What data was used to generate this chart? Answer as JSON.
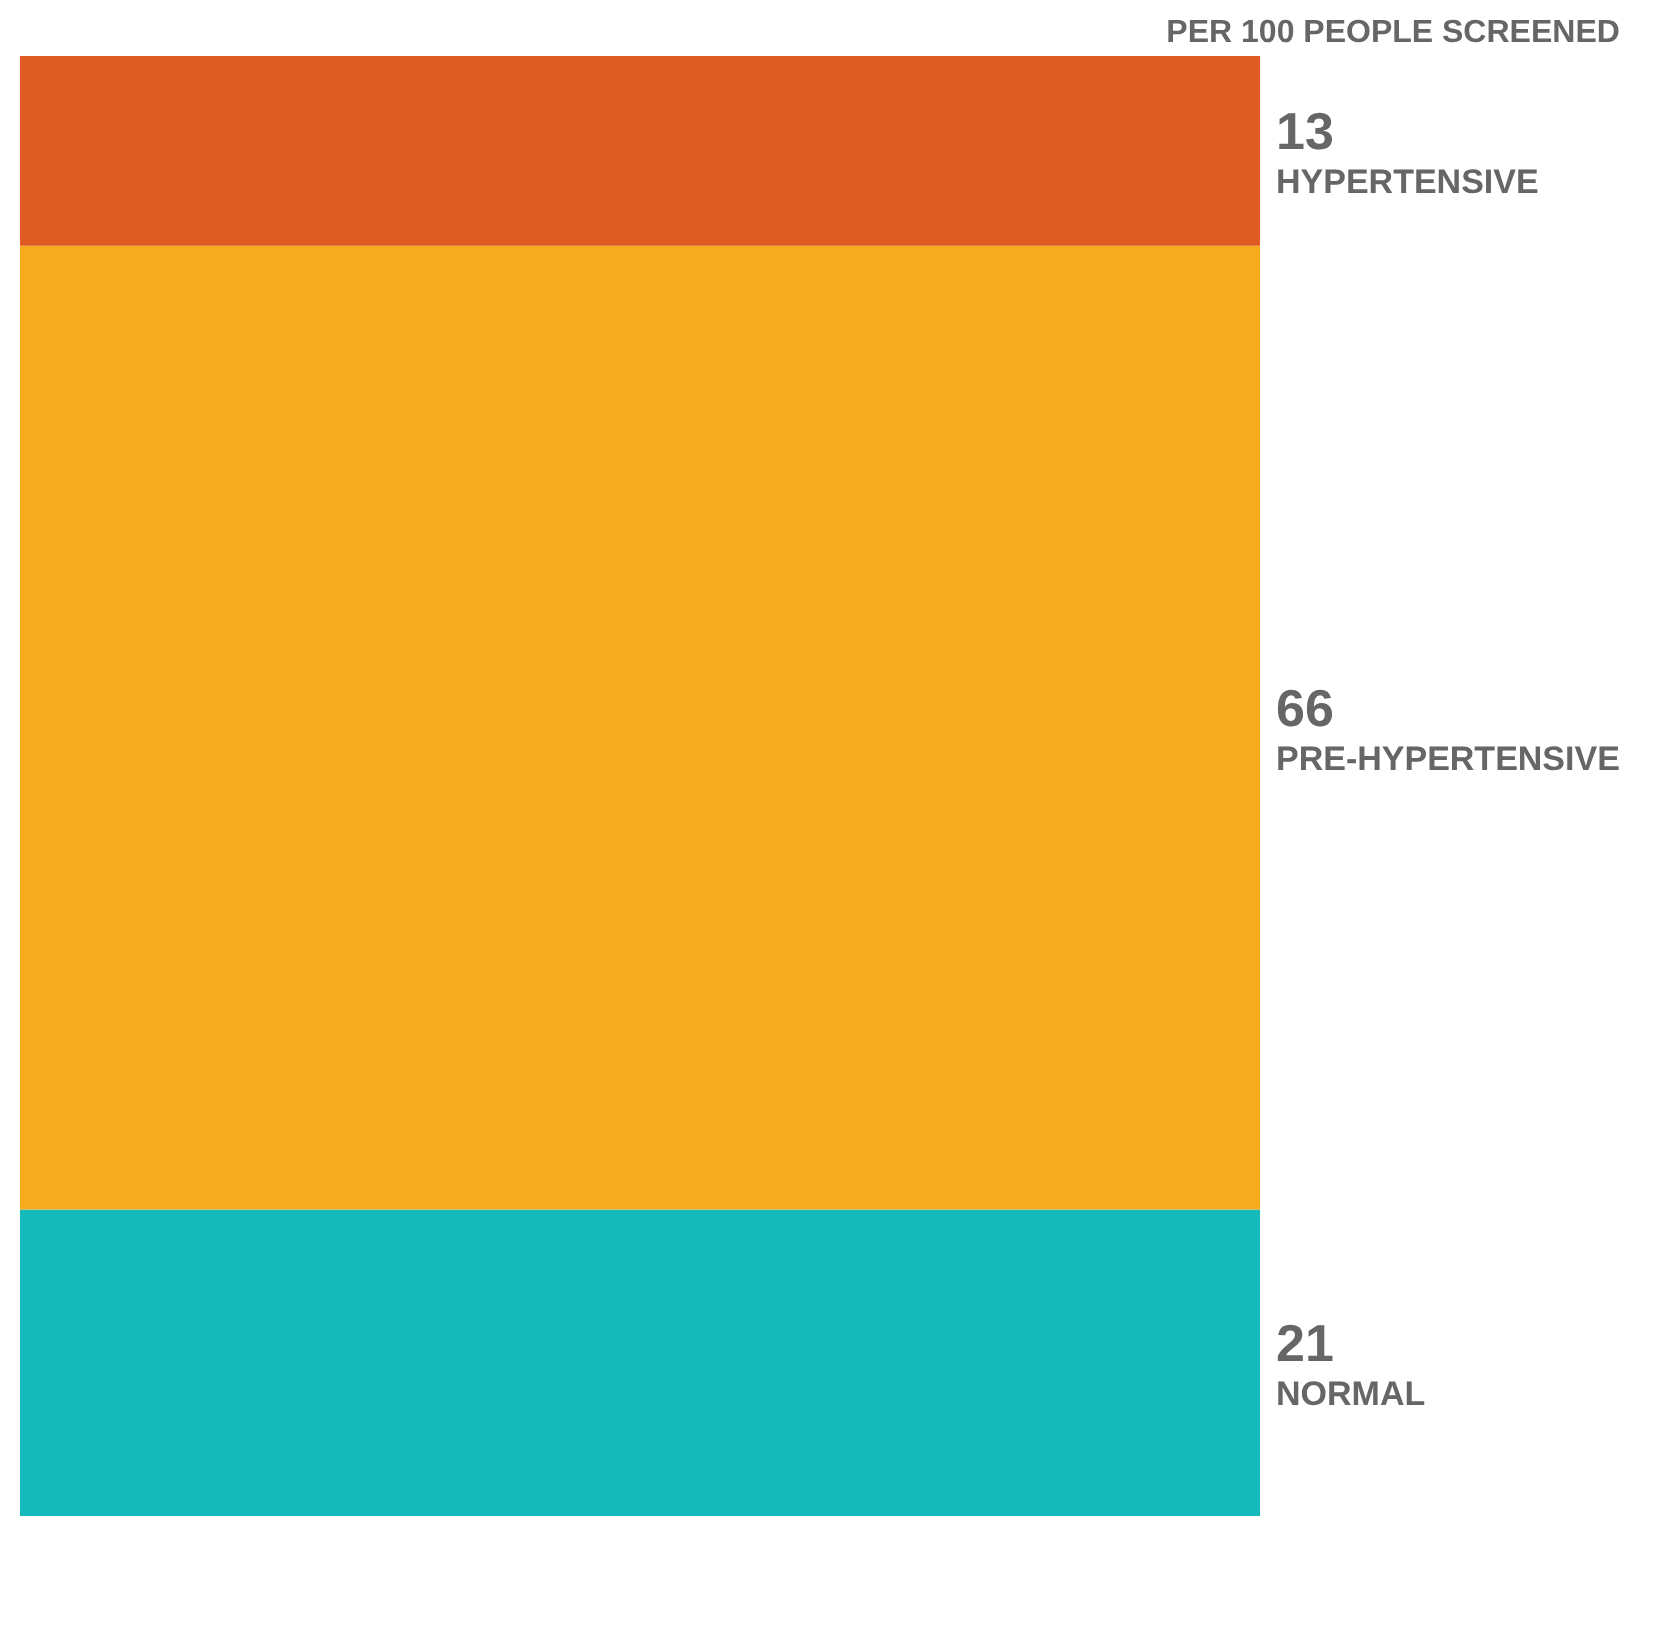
{
  "chart_data": {
    "type": "bar",
    "title": "PER 100 PEOPLE SCREENED",
    "categories": [
      null
    ],
    "stacked": true,
    "data_labels": true,
    "grid": false,
    "series": [
      {
        "name": "NORMAL",
        "color": "#15b9b9",
        "values": [
          21
        ]
      },
      {
        "name": "PRE-HYPERTENSIVE",
        "color": "#f5ab1d",
        "values": [
          66
        ]
      },
      {
        "name": "HYPERTENSIVE",
        "color": "#e05a24",
        "values": [
          13
        ]
      }
    ]
  }
}
